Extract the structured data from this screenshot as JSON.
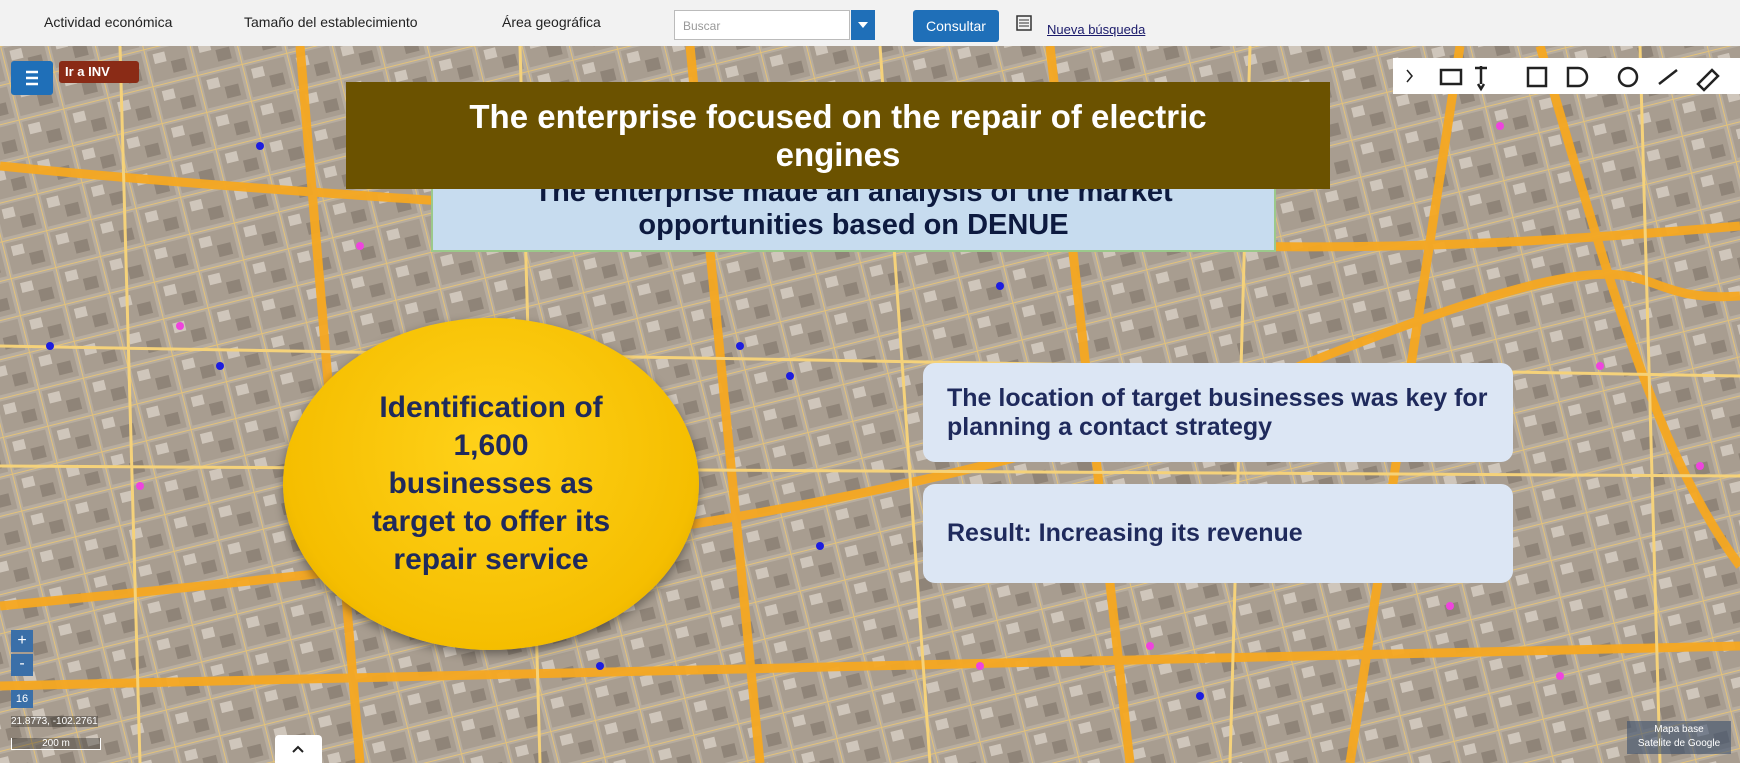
{
  "toolbar": {
    "menus": [
      "Actividad económica",
      "Tamaño del establecimiento",
      "Área geográfica"
    ],
    "search_placeholder": "Buscar",
    "button": "Consultar",
    "link": "Nueva búsqueda"
  },
  "map": {
    "home_label": "Ir a INV",
    "zoom_in": "+",
    "zoom_out": "-",
    "zoom_level": "16",
    "coordinates": "21.8773, -102.2761",
    "scale": "200 m",
    "basemap": [
      "Mapa base",
      "Satelite de Google"
    ]
  },
  "slide": {
    "title": "The enterprise focused on the repair of electric engines",
    "subtitle": "The enterprise made an analysis of the market opportunities based on DENUE",
    "highlight_lines": [
      "Identification of",
      "1,600",
      "businesses as",
      "target to offer its",
      "repair service"
    ],
    "points": [
      "The location of target businesses was key for planning a contact strategy",
      "Result: Increasing its revenue"
    ]
  }
}
